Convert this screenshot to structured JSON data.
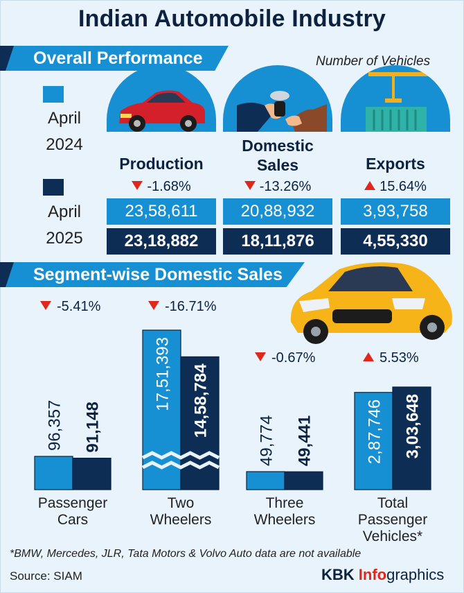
{
  "title": "Indian Automobile Industry",
  "overall": {
    "heading": "Overall Performance",
    "units": "Number of Vehicles",
    "legend": [
      {
        "label_line1": "April",
        "label_line2": "2024",
        "color": "#1790d3"
      },
      {
        "label_line1": "April",
        "label_line2": "2025",
        "color": "#0d2d55"
      }
    ],
    "cards": [
      {
        "label_line1": "Production",
        "label_line2": "",
        "direction": "down",
        "change": "-1.68%",
        "v2024": "23,58,611",
        "v2025": "23,18,882",
        "icon": "car-icon"
      },
      {
        "label_line1": "Domestic",
        "label_line2": "Sales",
        "direction": "down",
        "change": "-13.26%",
        "v2024": "20,88,932",
        "v2025": "18,11,876",
        "icon": "car-keys-icon"
      },
      {
        "label_line1": "Exports",
        "label_line2": "",
        "direction": "up",
        "change": "15.64%",
        "v2024": "3,93,758",
        "v2025": "4,55,330",
        "icon": "shipping-container-icon"
      }
    ]
  },
  "segment": {
    "heading": "Segment-wise Domestic Sales"
  },
  "chart_data": {
    "type": "bar",
    "categories": [
      "Passenger Cars",
      "Two Wheelers",
      "Three Wheelers",
      "Total Passenger Vehicles*"
    ],
    "category_lines": [
      [
        "Passenger",
        "Cars"
      ],
      [
        "Two",
        "Wheelers"
      ],
      [
        "Three",
        "Wheelers"
      ],
      [
        "Total",
        "Passenger",
        "Vehicles*"
      ]
    ],
    "series": [
      {
        "name": "April 2024",
        "values": [
          96357,
          1751393,
          49774,
          287746
        ],
        "labels": [
          "96,357",
          "17,51,393",
          "49,774",
          "2,87,746"
        ],
        "color": "#1790d3"
      },
      {
        "name": "April 2025",
        "values": [
          91148,
          1458784,
          49441,
          303648
        ],
        "labels": [
          "91,148",
          "14,58,784",
          "49,441",
          "3,03,648"
        ],
        "color": "#0d2d55"
      }
    ],
    "changes": [
      {
        "direction": "down",
        "text": "-5.41%"
      },
      {
        "direction": "down",
        "text": "-16.71%"
      },
      {
        "direction": "down",
        "text": "-0.67%"
      },
      {
        "direction": "up",
        "text": "5.53%"
      }
    ],
    "broken_axis": [
      "Two Wheelers"
    ]
  },
  "footnote": "*BMW, Mercedes, JLR, Tata Motors & Volvo Auto data are not available",
  "source": "Source: SIAM",
  "brand": {
    "part1": "KBK ",
    "part2": "Info",
    "part3": "graphics"
  }
}
